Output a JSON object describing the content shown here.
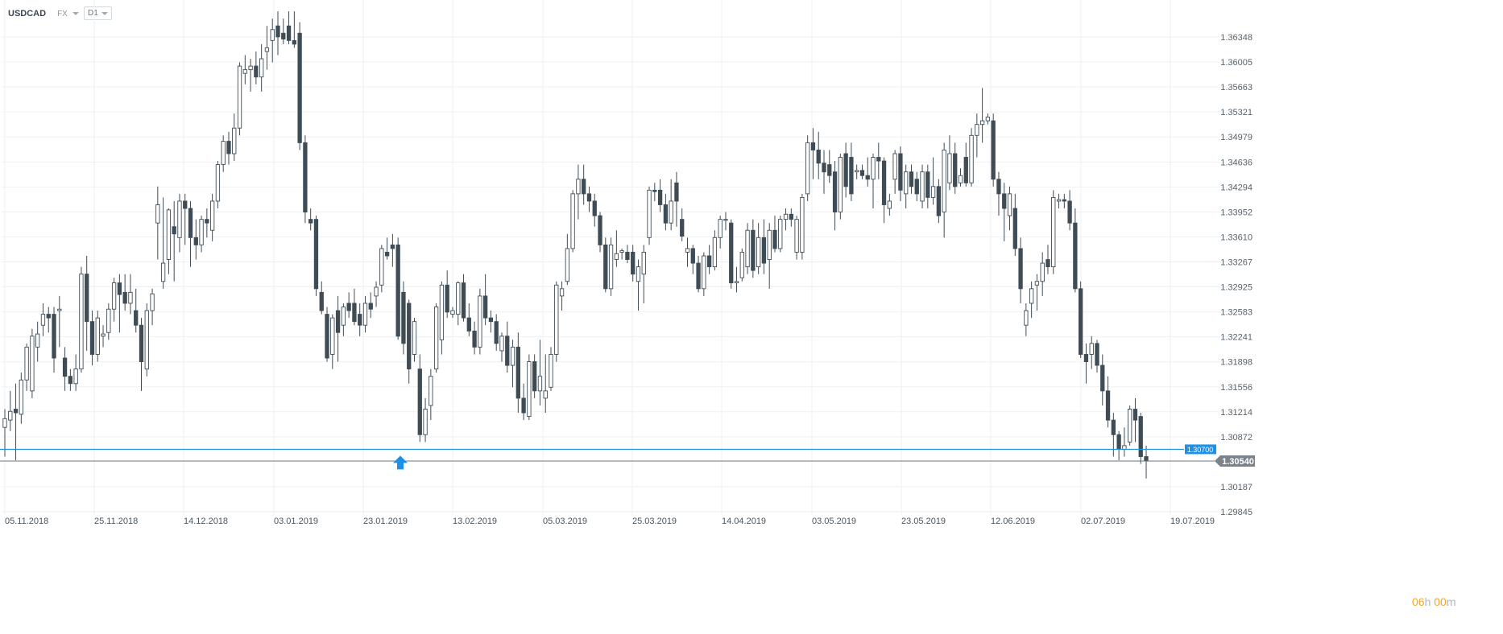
{
  "header": {
    "symbol": "USDCAD",
    "market": "FX",
    "timeframe": "D1"
  },
  "countdown": {
    "hours": "06",
    "h_unit": "h",
    "minutes": "00",
    "m_unit": "m"
  },
  "colors": {
    "candle": "#3f4c56",
    "grid": "#eef0f2",
    "level_line": "#1e90e6",
    "price_line": "#6b747c",
    "arrow": "#1e90e6",
    "timer": "#f5a623"
  },
  "chart_data": {
    "type": "candlestick",
    "instrument": "USDCAD",
    "timeframe": "D1",
    "y_axis": {
      "ticks": [
        1.36348,
        1.36005,
        1.35663,
        1.35321,
        1.34979,
        1.34636,
        1.34294,
        1.33952,
        1.3361,
        1.33267,
        1.32925,
        1.32583,
        1.32241,
        1.31898,
        1.31556,
        1.31214,
        1.30872,
        1.30187,
        1.29845
      ],
      "tick_labels": [
        "1.36348",
        "1.36005",
        "1.35663",
        "1.35321",
        "1.34979",
        "1.34636",
        "1.34294",
        "1.33952",
        "1.33610",
        "1.33267",
        "1.32925",
        "1.32583",
        "1.32241",
        "1.31898",
        "1.31556",
        "1.31214",
        "1.30872",
        "1.30187",
        "1.29845"
      ],
      "range": [
        1.29845,
        1.36348
      ]
    },
    "x_axis": {
      "tick_labels": [
        "05.11.2018",
        "25.11.2018",
        "14.12.2018",
        "03.01.2019",
        "23.01.2019",
        "13.02.2019",
        "05.03.2019",
        "25.03.2019",
        "14.04.2019",
        "03.05.2019",
        "23.05.2019",
        "12.06.2019",
        "02.07.2019",
        "19.07.2019"
      ]
    },
    "grid": true,
    "horizontal_level": {
      "value": 1.307,
      "label": "1.30700"
    },
    "current_price": {
      "value": 1.3054,
      "label": "1.30540"
    },
    "marker": {
      "type": "up-arrow",
      "date": "23.01.2019",
      "price": 1.307
    },
    "candles": [
      [
        1.31,
        1.3125,
        1.306,
        1.3112
      ],
      [
        1.311,
        1.315,
        1.3095,
        1.3122
      ],
      [
        1.3125,
        1.316,
        1.3055,
        1.312
      ],
      [
        1.3118,
        1.3175,
        1.3105,
        1.3165
      ],
      [
        1.3165,
        1.3215,
        1.315,
        1.321
      ],
      [
        1.315,
        1.3235,
        1.314,
        1.3225
      ],
      [
        1.321,
        1.3245,
        1.319,
        1.3228
      ],
      [
        1.324,
        1.327,
        1.3225,
        1.3255
      ],
      [
        1.3255,
        1.3265,
        1.323,
        1.325
      ],
      [
        1.3255,
        1.3265,
        1.3175,
        1.3195
      ],
      [
        1.326,
        1.328,
        1.321,
        1.3262
      ],
      [
        1.3195,
        1.321,
        1.315,
        1.317
      ],
      [
        1.317,
        1.318,
        1.315,
        1.316
      ],
      [
        1.316,
        1.32,
        1.315,
        1.318
      ],
      [
        1.318,
        1.332,
        1.3175,
        1.331
      ],
      [
        1.331,
        1.3335,
        1.3205,
        1.3245
      ],
      [
        1.3245,
        1.326,
        1.3185,
        1.32
      ],
      [
        1.32,
        1.326,
        1.319,
        1.325
      ],
      [
        1.3225,
        1.324,
        1.321,
        1.3228
      ],
      [
        1.323,
        1.327,
        1.322,
        1.3262
      ],
      [
        1.3262,
        1.3305,
        1.3245,
        1.3298
      ],
      [
        1.3298,
        1.331,
        1.323,
        1.3282
      ],
      [
        1.3285,
        1.331,
        1.326,
        1.327
      ],
      [
        1.327,
        1.331,
        1.3255,
        1.3285
      ],
      [
        1.326,
        1.329,
        1.323,
        1.324
      ],
      [
        1.324,
        1.325,
        1.315,
        1.319
      ],
      [
        1.318,
        1.327,
        1.317,
        1.326
      ],
      [
        1.326,
        1.329,
        1.324,
        1.3283
      ],
      [
        1.338,
        1.343,
        1.333,
        1.3405
      ],
      [
        1.33,
        1.3415,
        1.329,
        1.3325
      ],
      [
        1.333,
        1.34,
        1.331,
        1.3398
      ],
      [
        1.3375,
        1.341,
        1.33,
        1.3365
      ],
      [
        1.336,
        1.342,
        1.334,
        1.341
      ],
      [
        1.341,
        1.342,
        1.335,
        1.34
      ],
      [
        1.34,
        1.341,
        1.332,
        1.336
      ],
      [
        1.336,
        1.3385,
        1.333,
        1.335
      ],
      [
        1.335,
        1.339,
        1.334,
        1.3385
      ],
      [
        1.3385,
        1.34,
        1.336,
        1.338
      ],
      [
        1.337,
        1.342,
        1.3355,
        1.341
      ],
      [
        1.341,
        1.3465,
        1.34,
        1.346
      ],
      [
        1.346,
        1.35,
        1.345,
        1.3492
      ],
      [
        1.3492,
        1.3505,
        1.346,
        1.3475
      ],
      [
        1.3475,
        1.353,
        1.3465,
        1.351
      ],
      [
        1.351,
        1.36,
        1.35,
        1.3595
      ],
      [
        1.3585,
        1.361,
        1.357,
        1.359
      ],
      [
        1.359,
        1.3605,
        1.356,
        1.3595
      ],
      [
        1.3595,
        1.3615,
        1.357,
        1.358
      ],
      [
        1.358,
        1.3625,
        1.356,
        1.3605
      ],
      [
        1.3615,
        1.365,
        1.359,
        1.362
      ],
      [
        1.363,
        1.366,
        1.36,
        1.3645
      ],
      [
        1.365,
        1.367,
        1.361,
        1.3635
      ],
      [
        1.364,
        1.366,
        1.3625,
        1.3632
      ],
      [
        1.365,
        1.367,
        1.3625,
        1.363
      ],
      [
        1.363,
        1.367,
        1.362,
        1.3625
      ],
      [
        1.364,
        1.3655,
        1.348,
        1.349
      ],
      [
        1.349,
        1.35,
        1.338,
        1.3395
      ],
      [
        1.3385,
        1.34,
        1.337,
        1.338
      ],
      [
        1.3385,
        1.339,
        1.328,
        1.329
      ],
      [
        1.3285,
        1.33,
        1.3255,
        1.326
      ],
      [
        1.3255,
        1.3265,
        1.319,
        1.3195
      ],
      [
        1.32,
        1.3255,
        1.318,
        1.325
      ],
      [
        1.326,
        1.328,
        1.319,
        1.323
      ],
      [
        1.324,
        1.327,
        1.3225,
        1.3265
      ],
      [
        1.327,
        1.3285,
        1.325,
        1.326
      ],
      [
        1.327,
        1.329,
        1.324,
        1.3245
      ],
      [
        1.3255,
        1.327,
        1.3225,
        1.324
      ],
      [
        1.324,
        1.328,
        1.323,
        1.327
      ],
      [
        1.327,
        1.3285,
        1.325,
        1.3262
      ],
      [
        1.328,
        1.33,
        1.3265,
        1.3292
      ],
      [
        1.3295,
        1.335,
        1.3285,
        1.3345
      ],
      [
        1.334,
        1.336,
        1.333,
        1.3335
      ],
      [
        1.335,
        1.3365,
        1.332,
        1.3345
      ],
      [
        1.335,
        1.336,
        1.322,
        1.3225
      ],
      [
        1.3285,
        1.33,
        1.32,
        1.3215
      ],
      [
        1.327,
        1.3275,
        1.316,
        1.318
      ],
      [
        1.32,
        1.325,
        1.319,
        1.3245
      ],
      [
        1.318,
        1.32,
        1.308,
        1.309
      ],
      [
        1.309,
        1.314,
        1.308,
        1.3125
      ],
      [
        1.313,
        1.318,
        1.311,
        1.317
      ],
      [
        1.318,
        1.327,
        1.3175,
        1.3265
      ],
      [
        1.322,
        1.33,
        1.32,
        1.3295
      ],
      [
        1.3295,
        1.3315,
        1.325,
        1.3258
      ],
      [
        1.3255,
        1.3265,
        1.325,
        1.326
      ],
      [
        1.3255,
        1.33,
        1.324,
        1.3298
      ],
      [
        1.3298,
        1.331,
        1.3245,
        1.325
      ],
      [
        1.325,
        1.327,
        1.3225,
        1.3232
      ],
      [
        1.3232,
        1.3245,
        1.32,
        1.321
      ],
      [
        1.321,
        1.329,
        1.32,
        1.328
      ],
      [
        1.328,
        1.331,
        1.324,
        1.325
      ],
      [
        1.325,
        1.326,
        1.323,
        1.3245
      ],
      [
        1.3245,
        1.3255,
        1.3205,
        1.3215
      ],
      [
        1.3205,
        1.323,
        1.319,
        1.3225
      ],
      [
        1.3225,
        1.3245,
        1.3175,
        1.3185
      ],
      [
        1.3185,
        1.322,
        1.3155,
        1.321
      ],
      [
        1.321,
        1.323,
        1.312,
        1.314
      ],
      [
        1.314,
        1.316,
        1.311,
        1.312
      ],
      [
        1.3115,
        1.32,
        1.311,
        1.319
      ],
      [
        1.319,
        1.32,
        1.314,
        1.315
      ],
      [
        1.315,
        1.322,
        1.313,
        1.317
      ],
      [
        1.314,
        1.32,
        1.312,
        1.315
      ],
      [
        1.3155,
        1.321,
        1.315,
        1.32
      ],
      [
        1.32,
        1.33,
        1.319,
        1.3295
      ],
      [
        1.328,
        1.33,
        1.326,
        1.329
      ],
      [
        1.33,
        1.3365,
        1.3295,
        1.3345
      ],
      [
        1.3345,
        1.3425,
        1.334,
        1.342
      ],
      [
        1.342,
        1.346,
        1.3385,
        1.344
      ],
      [
        1.344,
        1.346,
        1.3405,
        1.342
      ],
      [
        1.342,
        1.343,
        1.3395,
        1.341
      ],
      [
        1.341,
        1.342,
        1.3375,
        1.339
      ],
      [
        1.339,
        1.3395,
        1.334,
        1.335
      ],
      [
        1.335,
        1.336,
        1.3285,
        1.329
      ],
      [
        1.329,
        1.336,
        1.328,
        1.335
      ],
      [
        1.333,
        1.337,
        1.332,
        1.3338
      ],
      [
        1.334,
        1.3345,
        1.333,
        1.3342
      ],
      [
        1.334,
        1.335,
        1.3325,
        1.333
      ],
      [
        1.334,
        1.335,
        1.33,
        1.331
      ],
      [
        1.33,
        1.333,
        1.326,
        1.332
      ],
      [
        1.331,
        1.335,
        1.327,
        1.334
      ],
      [
        1.336,
        1.343,
        1.335,
        1.3425
      ],
      [
        1.3425,
        1.3435,
        1.341,
        1.3423
      ],
      [
        1.3425,
        1.344,
        1.3395,
        1.3405
      ],
      [
        1.3405,
        1.342,
        1.337,
        1.338
      ],
      [
        1.338,
        1.344,
        1.337,
        1.341
      ],
      [
        1.3435,
        1.345,
        1.3375,
        1.341
      ],
      [
        1.3385,
        1.34,
        1.3355,
        1.3362
      ],
      [
        1.334,
        1.336,
        1.332,
        1.3345
      ],
      [
        1.3345,
        1.335,
        1.331,
        1.3325
      ],
      [
        1.3325,
        1.3335,
        1.3285,
        1.329
      ],
      [
        1.329,
        1.334,
        1.328,
        1.3335
      ],
      [
        1.3335,
        1.335,
        1.331,
        1.332
      ],
      [
        1.332,
        1.337,
        1.3315,
        1.336
      ],
      [
        1.336,
        1.339,
        1.3345,
        1.3385
      ],
      [
        1.3385,
        1.3395,
        1.337,
        1.3385
      ],
      [
        1.338,
        1.3385,
        1.329,
        1.3298
      ],
      [
        1.3298,
        1.332,
        1.3285,
        1.33
      ],
      [
        1.3305,
        1.3345,
        1.33,
        1.334
      ],
      [
        1.332,
        1.338,
        1.331,
        1.337
      ],
      [
        1.337,
        1.3385,
        1.3305,
        1.3315
      ],
      [
        1.332,
        1.338,
        1.331,
        1.336
      ],
      [
        1.336,
        1.3385,
        1.331,
        1.3325
      ],
      [
        1.333,
        1.338,
        1.329,
        1.337
      ],
      [
        1.337,
        1.339,
        1.334,
        1.3345
      ],
      [
        1.3345,
        1.339,
        1.334,
        1.3385
      ],
      [
        1.3385,
        1.34,
        1.337,
        1.3392
      ],
      [
        1.3392,
        1.34,
        1.3375,
        1.3385
      ],
      [
        1.334,
        1.339,
        1.333,
        1.3385
      ],
      [
        1.334,
        1.342,
        1.333,
        1.3415
      ],
      [
        1.342,
        1.35,
        1.341,
        1.349
      ],
      [
        1.349,
        1.351,
        1.344,
        1.348
      ],
      [
        1.348,
        1.3505,
        1.344,
        1.3462
      ],
      [
        1.3462,
        1.348,
        1.342,
        1.345
      ],
      [
        1.346,
        1.348,
        1.3435,
        1.3445
      ],
      [
        1.345,
        1.3465,
        1.337,
        1.3395
      ],
      [
        1.3395,
        1.3475,
        1.3385,
        1.347
      ],
      [
        1.3475,
        1.349,
        1.3415,
        1.343
      ],
      [
        1.347,
        1.349,
        1.341,
        1.342
      ],
      [
        1.345,
        1.346,
        1.344,
        1.3452
      ],
      [
        1.3452,
        1.346,
        1.344,
        1.3445
      ],
      [
        1.3445,
        1.347,
        1.343,
        1.344
      ],
      [
        1.344,
        1.3475,
        1.34,
        1.347
      ],
      [
        1.347,
        1.349,
        1.344,
        1.3465
      ],
      [
        1.3465,
        1.347,
        1.338,
        1.3405
      ],
      [
        1.34,
        1.342,
        1.339,
        1.341
      ],
      [
        1.344,
        1.348,
        1.342,
        1.3475
      ],
      [
        1.3475,
        1.3485,
        1.341,
        1.3425
      ],
      [
        1.342,
        1.346,
        1.34,
        1.345
      ],
      [
        1.345,
        1.346,
        1.342,
        1.343
      ],
      [
        1.344,
        1.345,
        1.341,
        1.342
      ],
      [
        1.341,
        1.346,
        1.34,
        1.345
      ],
      [
        1.345,
        1.346,
        1.34,
        1.3415
      ],
      [
        1.3415,
        1.347,
        1.3405,
        1.343
      ],
      [
        1.343,
        1.344,
        1.338,
        1.339
      ],
      [
        1.3395,
        1.349,
        1.336,
        1.348
      ],
      [
        1.3435,
        1.35,
        1.3425,
        1.3475
      ],
      [
        1.3475,
        1.349,
        1.342,
        1.343
      ],
      [
        1.3435,
        1.3455,
        1.343,
        1.3445
      ],
      [
        1.347,
        1.349,
        1.343,
        1.3435
      ],
      [
        1.3435,
        1.351,
        1.343,
        1.35
      ],
      [
        1.35,
        1.353,
        1.347,
        1.3515
      ],
      [
        1.3515,
        1.3565,
        1.349,
        1.352
      ],
      [
        1.352,
        1.353,
        1.3515,
        1.3525
      ],
      [
        1.352,
        1.353,
        1.343,
        1.344
      ],
      [
        1.344,
        1.345,
        1.339,
        1.342
      ],
      [
        1.342,
        1.3435,
        1.3355,
        1.34
      ],
      [
        1.339,
        1.343,
        1.337,
        1.342
      ],
      [
        1.34,
        1.342,
        1.3335,
        1.3345
      ],
      [
        1.3345,
        1.336,
        1.327,
        1.329
      ],
      [
        1.324,
        1.327,
        1.3225,
        1.326
      ],
      [
        1.327,
        1.33,
        1.325,
        1.329
      ],
      [
        1.3295,
        1.331,
        1.326,
        1.33
      ],
      [
        1.33,
        1.334,
        1.328,
        1.3325
      ],
      [
        1.333,
        1.335,
        1.331,
        1.332
      ],
      [
        1.332,
        1.3425,
        1.331,
        1.3415
      ],
      [
        1.341,
        1.342,
        1.34,
        1.3412
      ],
      [
        1.3412,
        1.342,
        1.34,
        1.341
      ],
      [
        1.341,
        1.3425,
        1.337,
        1.338
      ],
      [
        1.338,
        1.34,
        1.3285,
        1.329
      ],
      [
        1.329,
        1.33,
        1.3195,
        1.32
      ],
      [
        1.32,
        1.3215,
        1.316,
        1.319
      ],
      [
        1.32,
        1.3225,
        1.318,
        1.3215
      ],
      [
        1.3215,
        1.322,
        1.3175,
        1.3185
      ],
      [
        1.3185,
        1.32,
        1.313,
        1.315
      ],
      [
        1.315,
        1.317,
        1.31,
        1.311
      ],
      [
        1.311,
        1.312,
        1.306,
        1.309
      ],
      [
        1.309,
        1.3095,
        1.3055,
        1.307
      ],
      [
        1.307,
        1.31,
        1.306,
        1.3075
      ],
      [
        1.308,
        1.313,
        1.3075,
        1.3125
      ],
      [
        1.3125,
        1.314,
        1.308,
        1.311
      ],
      [
        1.3115,
        1.312,
        1.305,
        1.306
      ],
      [
        1.306,
        1.3075,
        1.303,
        1.3054
      ]
    ]
  }
}
